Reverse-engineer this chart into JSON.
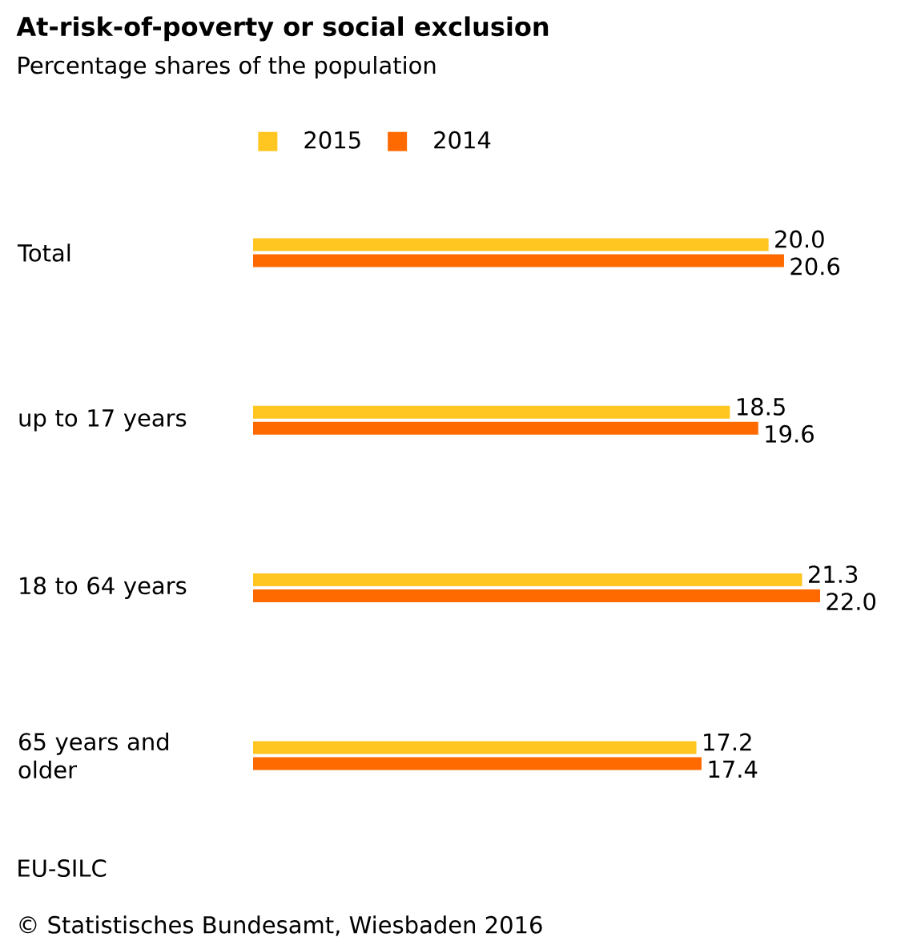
{
  "chart_data": {
    "type": "bar",
    "orientation": "horizontal",
    "title": "At-risk-of-poverty or social exclusion",
    "subtitle": "Percentage shares of the population",
    "categories": [
      "Total",
      "up to 17 years",
      "18 to 64 years",
      "65 years and older"
    ],
    "series": [
      {
        "name": "2015",
        "color": "#ffc520",
        "values": [
          20.0,
          18.5,
          21.3,
          17.2
        ],
        "value_labels": [
          "20.0",
          "18.5",
          "21.3",
          "17.2"
        ]
      },
      {
        "name": "2014",
        "color": "#ff6a00",
        "values": [
          20.6,
          19.6,
          22.0,
          17.4
        ],
        "value_labels": [
          "20.6",
          "19.6",
          "22.0",
          "17.4"
        ]
      }
    ],
    "xlim": [
      0,
      22
    ],
    "legend": "top",
    "tick_labels": "y",
    "annotations": [
      "EU-SILC",
      "© Statistisches Bundesamt, Wiesbaden 2016"
    ]
  }
}
